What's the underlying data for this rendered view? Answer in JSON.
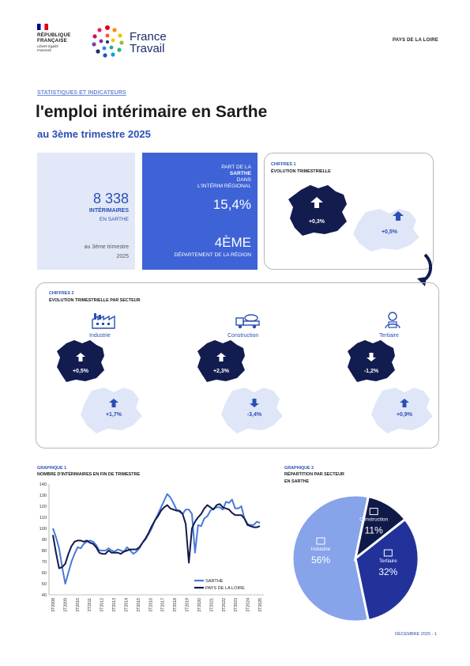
{
  "header": {
    "rf_line1": "RÉPUBLIQUE",
    "rf_line2": "FRANÇAISE",
    "rf_motto": "Liberté Égalité Fraternité",
    "brand_line1": "France",
    "brand_line2": "Travail",
    "region": "PAYS DE LA LOIRE"
  },
  "intro": {
    "kicker": "STATISTIQUES ET INDICATEURS",
    "title": "l'emploi intérimaire en Sarthe",
    "subtitle": "au 3ème trimestre 2025"
  },
  "card1": {
    "value": "8 338",
    "label": "INTÉRIMAIRES",
    "sub": "EN SARTHE",
    "foot1": "au 3ème trimestre",
    "foot2": "2025"
  },
  "card2": {
    "l1": "PART DE LA",
    "l2": "SARTHE",
    "l3": "DANS",
    "l4": "L'INTÉRIM RÉGIONAL",
    "share": "15,4%",
    "rank": "4ÈME",
    "rank_label": "DÉPARTEMENT DE LA RÉGION"
  },
  "chiffres1": {
    "title": "CHIFFRES 1",
    "subtitle": "ÉVOLUTION TRIMESTRIELLE",
    "dept_value": "+0,3%",
    "region_value": "+0,5%"
  },
  "chiffres2": {
    "title": "CHIFFRES 2",
    "subtitle": "ÉVOLUTION TRIMESTRIELLE PAR SECTEUR",
    "sectors": [
      {
        "name": "Industrie",
        "icon": "factory-icon",
        "dept": "+0,5%",
        "dept_dir": "up",
        "region": "+1,7%",
        "region_dir": "up"
      },
      {
        "name": "Construction",
        "icon": "truck-icon",
        "dept": "+2,3%",
        "dept_dir": "up",
        "region": "-3,4%",
        "region_dir": "down"
      },
      {
        "name": "Tertiaire",
        "icon": "worker-icon",
        "dept": "-1,2%",
        "dept_dir": "down",
        "region": "+0,9%",
        "region_dir": "up"
      }
    ]
  },
  "graph1": {
    "heading": "GRAPHIQUE 1",
    "subtitle": "NOMBRE D'INTÉRIMAIRES EN FIN DE TRIMESTRE"
  },
  "graph2": {
    "heading": "GRAPHIQUE 2",
    "subtitle1": "RÉPARTITION PAR SECTEUR",
    "subtitle2": "EN SARTHE"
  },
  "chart_data": [
    {
      "type": "line",
      "title": "NOMBRE D'INTÉRIMAIRES EN FIN DE TRIMESTRE",
      "ylim": [
        40,
        140
      ],
      "yticks": [
        "40",
        "50",
        "60",
        "70",
        "80",
        "90",
        "100",
        "110",
        "120",
        "130",
        "140"
      ],
      "xticks": [
        "3T2008",
        "3T2009",
        "3T2010",
        "3T2011",
        "3T2012",
        "3T2013",
        "3T2014",
        "3T2015",
        "3T2016",
        "3T2017",
        "3T2018",
        "3T2019",
        "3T2020",
        "3T2021",
        "3T2022",
        "3T2023",
        "3T2024",
        "3T2025"
      ],
      "grid": false,
      "legend": "bottom-right",
      "series": [
        {
          "name": "SARTHE",
          "color": "#4a78d8",
          "values": [
            100,
            92,
            82,
            65,
            50,
            60,
            70,
            77,
            83,
            82,
            86,
            88,
            89,
            88,
            85,
            80,
            80,
            80,
            82,
            80,
            79,
            81,
            80,
            79,
            83,
            80,
            77,
            79,
            82,
            87,
            90,
            95,
            100,
            107,
            113,
            119,
            125,
            131,
            128,
            123,
            117,
            115,
            113,
            117,
            117,
            113,
            78,
            103,
            102,
            109,
            111,
            116,
            118,
            119,
            119,
            117,
            124,
            123,
            126,
            118,
            118,
            120,
            109,
            104,
            103,
            103,
            106,
            105
          ]
        },
        {
          "name": "PAYS DE LA LOIRE",
          "color": "#111a4a",
          "values": [
            94,
            78,
            64,
            65,
            68,
            77,
            84,
            88,
            89,
            89,
            88,
            89,
            87,
            86,
            83,
            78,
            77,
            77,
            80,
            78,
            78,
            78,
            77,
            79,
            80,
            81,
            81,
            81,
            83,
            87,
            91,
            96,
            102,
            107,
            111,
            116,
            119,
            121,
            118,
            117,
            116,
            116,
            113,
            104,
            69,
            100,
            106,
            110,
            113,
            118,
            121,
            119,
            117,
            121,
            122,
            119,
            118,
            117,
            114,
            112,
            112,
            112,
            109,
            103,
            102,
            101,
            101,
            102
          ]
        }
      ]
    },
    {
      "type": "pie",
      "title": "RÉPARTITION PAR SECTEUR",
      "categories": [
        "Industrie",
        "Construction",
        "Tertiaire"
      ],
      "values": [
        56,
        11,
        32
      ],
      "labels": [
        "56%",
        "11%",
        "32%"
      ],
      "colors": [
        "#87a3ea",
        "#101a48",
        "#22329a"
      ]
    }
  ],
  "footer": {
    "text": "DÉCEMBRE 2025 - 1"
  },
  "colors": {
    "navy": "#131c4f",
    "blue": "#3e63d6",
    "pale": "#dfe6f8",
    "accent": "#2b4fb4"
  }
}
